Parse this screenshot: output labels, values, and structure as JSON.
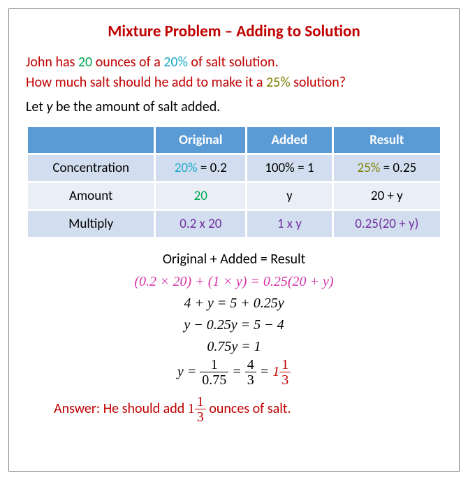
{
  "colors": {
    "title": "#c00000",
    "problem_text": "#c00000",
    "green": "#00a650",
    "teal": "#1ca9c9",
    "olive": "#7f7f00",
    "black": "#000000",
    "purple": "#7030a0",
    "magenta": "#d632a6",
    "red": "#c00000",
    "table_header_bg": "#5b9bd5",
    "row_odd_bg": "#d2deef",
    "row_even_bg": "#eaeff7"
  },
  "title": "Mixture Problem – Adding to Solution",
  "problem": {
    "p1a": "John has ",
    "p1b": "20",
    "p1c": " ounces of a ",
    "p1d": "20%",
    "p1e": " of salt solution.",
    "p2a": "How much salt should he add to make it a ",
    "p2b": "25%",
    "p2c": " solution?"
  },
  "let": {
    "a": "Let ",
    "y": "y",
    "b": " be the amount of salt added."
  },
  "table": {
    "headers": {
      "h0": "",
      "h1": "Original",
      "h2": "Added",
      "h3": "Result"
    },
    "rows": [
      {
        "label": "Concentration",
        "c1": {
          "color_a": "#1ca9c9",
          "a": "20%",
          "b": " = 0.2"
        },
        "c2": {
          "a": "100% = 1"
        },
        "c3": {
          "color_a": "#7f7f00",
          "a": "25%",
          "b": " = 0.25"
        }
      },
      {
        "label": "Amount",
        "c1": {
          "color_a": "#00a650",
          "a": "20"
        },
        "c2": {
          "a": "y"
        },
        "c3": {
          "a": "20 + y"
        }
      },
      {
        "label": "Multiply",
        "c1": {
          "color_a": "#7030a0",
          "a": "0.2 x 20"
        },
        "c2": {
          "color_a": "#7030a0",
          "a": "1 x y"
        },
        "c3": {
          "color_a": "#7030a0",
          "a": "0.25(20 + y)"
        }
      }
    ]
  },
  "equations": {
    "header": "Original + Added = Result",
    "line1": "(0.2 × 20) + (1 × y) = 0.25(20 + y)",
    "line2": "4 + y = 5 + 0.25y",
    "line3": "y − 0.25y = 5 − 4",
    "line4": "0.75y = 1",
    "line5": {
      "pre": "y = ",
      "f1n": "1",
      "f1d": "0.75",
      "mid1": " = ",
      "f2n": "4",
      "f2d": "3",
      "mid2": " = ",
      "whole": "1",
      "f3n": "1",
      "f3d": "3"
    }
  },
  "answer": {
    "a": "Answer: He should add ",
    "whole": "1",
    "fn": "1",
    "fd": "3",
    "b": " ounces of salt."
  }
}
